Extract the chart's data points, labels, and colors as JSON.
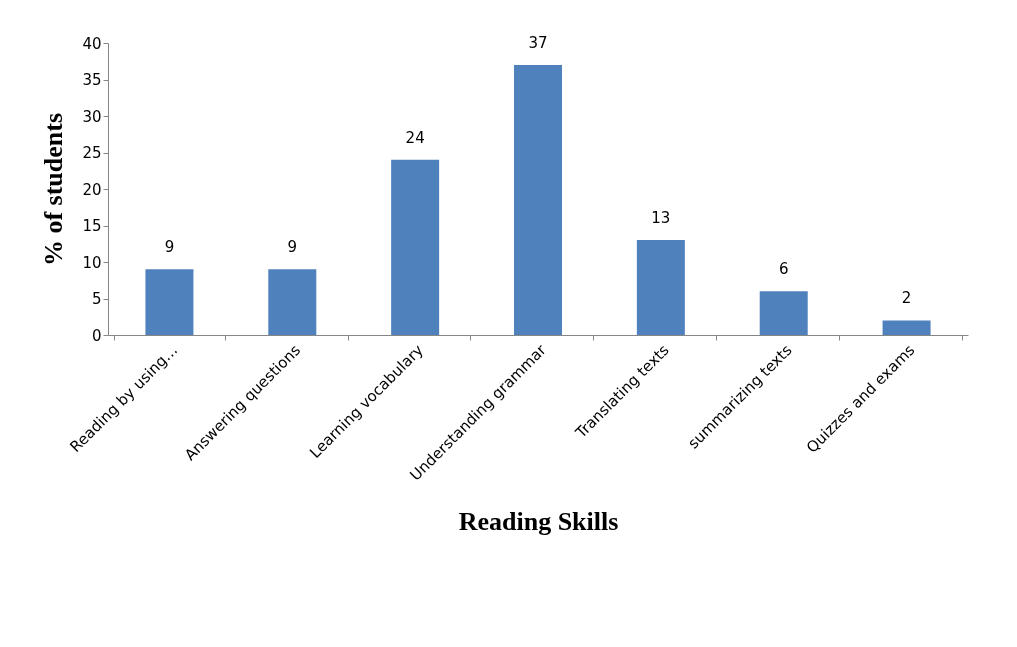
{
  "chart_data": {
    "type": "bar",
    "xlabel": "Reading Skills",
    "ylabel": "% of students",
    "categories": [
      "Reading by using…",
      "Answering  questions",
      "Learning vocabulary",
      "Understanding grammar",
      "Translating texts",
      "summarizing texts",
      "Quizzes and exams"
    ],
    "values": [
      9,
      9,
      24,
      37,
      13,
      6,
      2
    ],
    "color": "#4f81bd",
    "ylim": [
      0,
      40
    ],
    "yticks": [
      0,
      5,
      10,
      15,
      20,
      25,
      30,
      35,
      40
    ],
    "grid": false,
    "data_labels": true
  }
}
